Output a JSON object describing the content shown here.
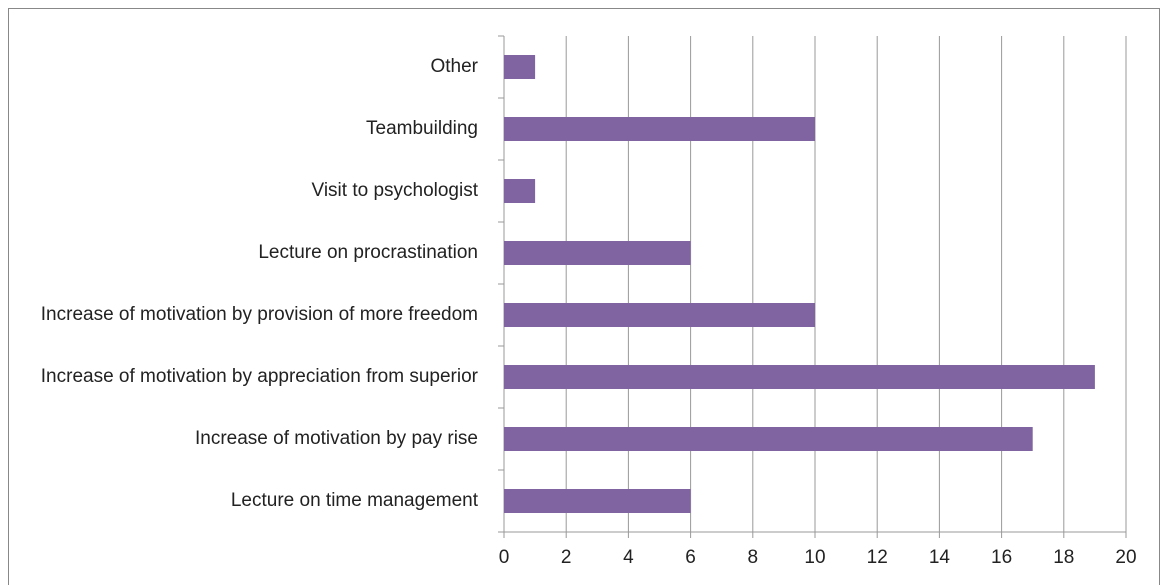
{
  "chart_data": {
    "type": "bar",
    "orientation": "horizontal",
    "categories": [
      "Other",
      "Teambuilding",
      "Visit to psychologist",
      "Lecture on procrastination",
      "Increase of motivation by provision of more freedom",
      "Increase of motivation by appreciation from superior",
      "Increase of motivation by pay rise",
      "Lecture on time management"
    ],
    "values": [
      1,
      10,
      1,
      6,
      10,
      19,
      17,
      6
    ],
    "color": "#8064a2",
    "xlim": [
      0,
      20
    ],
    "xticks": [
      0,
      2,
      4,
      6,
      8,
      10,
      12,
      14,
      16,
      18,
      20
    ],
    "grid": true
  }
}
